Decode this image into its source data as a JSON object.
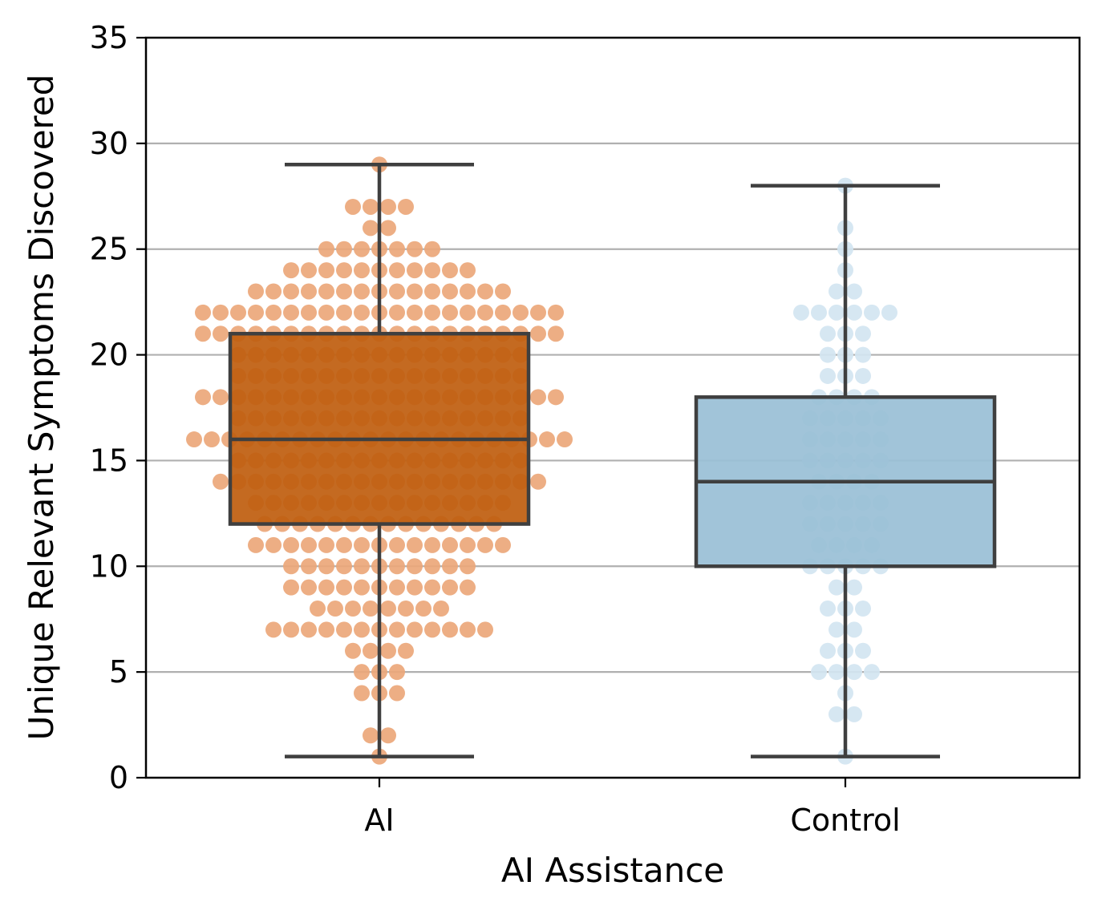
{
  "chart_data": {
    "type": "box",
    "title": "",
    "xlabel": "AI Assistance",
    "ylabel": "Unique Relevant Symptoms Discovered",
    "categories": [
      "AI",
      "Control"
    ],
    "ylim": [
      0,
      35
    ],
    "yticks": [
      0,
      5,
      10,
      15,
      20,
      25,
      30,
      35
    ],
    "grid": "y",
    "series": [
      {
        "name": "AI",
        "box_color": "#c05f10",
        "point_color": "#eba77a",
        "whisker_low": 1,
        "q1": 12,
        "median": 16,
        "q3": 21,
        "whisker_high": 29,
        "points": [
          {
            "y": 29,
            "n": 1
          },
          {
            "y": 27,
            "n": 4
          },
          {
            "y": 26,
            "n": 2
          },
          {
            "y": 25,
            "n": 7
          },
          {
            "y": 24,
            "n": 11
          },
          {
            "y": 23,
            "n": 15
          },
          {
            "y": 22,
            "n": 21
          },
          {
            "y": 21,
            "n": 21
          },
          {
            "y": 20,
            "n": 17
          },
          {
            "y": 19,
            "n": 17
          },
          {
            "y": 18,
            "n": 21
          },
          {
            "y": 17,
            "n": 17
          },
          {
            "y": 16,
            "n": 22
          },
          {
            "y": 15,
            "n": 17
          },
          {
            "y": 14,
            "n": 19
          },
          {
            "y": 13,
            "n": 15
          },
          {
            "y": 12,
            "n": 14
          },
          {
            "y": 11,
            "n": 15
          },
          {
            "y": 10,
            "n": 11
          },
          {
            "y": 9,
            "n": 11
          },
          {
            "y": 8,
            "n": 8
          },
          {
            "y": 7,
            "n": 13
          },
          {
            "y": 6,
            "n": 4
          },
          {
            "y": 5,
            "n": 3
          },
          {
            "y": 4,
            "n": 3
          },
          {
            "y": 2,
            "n": 2
          },
          {
            "y": 1,
            "n": 1
          }
        ]
      },
      {
        "name": "Control",
        "box_color": "#9ac0d6",
        "point_color": "#d3e5f1",
        "whisker_low": 1,
        "q1": 10,
        "median": 14,
        "q3": 18,
        "whisker_high": 28,
        "points": [
          {
            "y": 28,
            "n": 1
          },
          {
            "y": 26,
            "n": 1
          },
          {
            "y": 25,
            "n": 1
          },
          {
            "y": 24,
            "n": 1
          },
          {
            "y": 23,
            "n": 2
          },
          {
            "y": 22,
            "n": 6
          },
          {
            "y": 21,
            "n": 3
          },
          {
            "y": 20,
            "n": 3
          },
          {
            "y": 19,
            "n": 3
          },
          {
            "y": 18,
            "n": 4
          },
          {
            "y": 17,
            "n": 5
          },
          {
            "y": 16,
            "n": 5
          },
          {
            "y": 15,
            "n": 5
          },
          {
            "y": 14,
            "n": 4
          },
          {
            "y": 13,
            "n": 5
          },
          {
            "y": 12,
            "n": 5
          },
          {
            "y": 11,
            "n": 4
          },
          {
            "y": 10,
            "n": 5
          },
          {
            "y": 9,
            "n": 2
          },
          {
            "y": 8,
            "n": 3
          },
          {
            "y": 7,
            "n": 2
          },
          {
            "y": 6,
            "n": 3
          },
          {
            "y": 5,
            "n": 4
          },
          {
            "y": 4,
            "n": 1
          },
          {
            "y": 3,
            "n": 2
          },
          {
            "y": 1,
            "n": 1
          }
        ]
      }
    ]
  }
}
